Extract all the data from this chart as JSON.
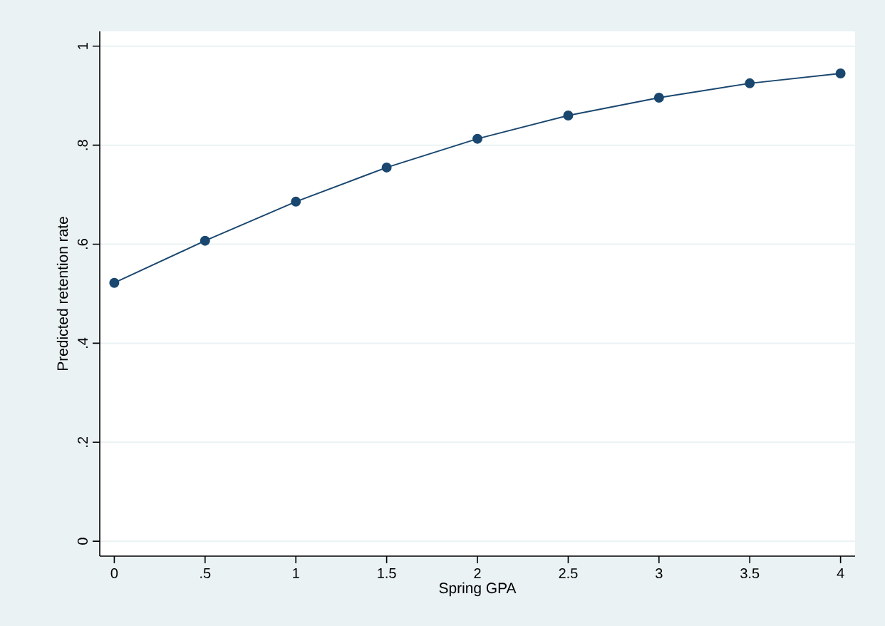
{
  "chart_data": {
    "type": "line",
    "xlabel": "Spring GPA",
    "ylabel": "Predicted retention rate",
    "x": [
      0,
      0.5,
      1,
      1.5,
      2,
      2.5,
      3,
      3.5,
      4
    ],
    "series": [
      {
        "color": "#1a476f",
        "values": [
          0.522,
          0.607,
          0.686,
          0.755,
          0.813,
          0.86,
          0.896,
          0.925,
          0.945
        ]
      }
    ],
    "xlim": [
      -0.08,
      4.08
    ],
    "ylim": [
      -0.03,
      1.03
    ],
    "xticks": [
      0,
      {
        "value": 0.5,
        "label": ".5"
      },
      1,
      1.5,
      2,
      2.5,
      3,
      3.5,
      4
    ],
    "yticks": [
      0,
      {
        "value": 0.2,
        "label": ".2"
      },
      {
        "value": 0.4,
        "label": ".4"
      },
      {
        "value": 0.6,
        "label": ".6"
      },
      {
        "value": 0.8,
        "label": ".8"
      },
      1
    ],
    "grid": "y",
    "marker": "circle",
    "line_style": "solid"
  }
}
